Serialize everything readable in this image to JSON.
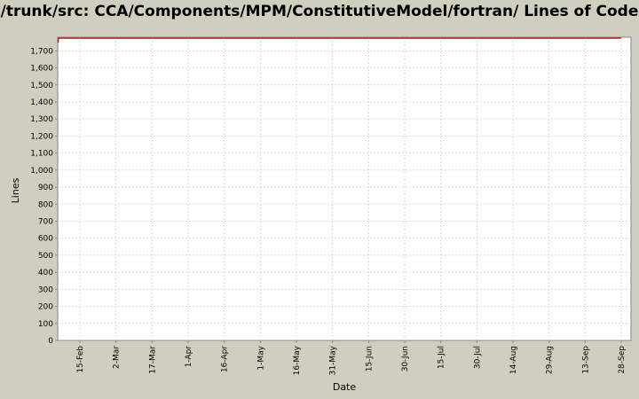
{
  "chart_data": {
    "type": "line",
    "title": "/trunk/src: CCA/Components/MPM/ConstitutiveModel/fortran/ Lines of Code",
    "xlabel": "Date",
    "ylabel": "Lines",
    "ylim": [
      0,
      1780
    ],
    "y_ticks": [
      "0",
      "100",
      "200",
      "300",
      "400",
      "500",
      "600",
      "700",
      "800",
      "900",
      "1,000",
      "1,100",
      "1,200",
      "1,300",
      "1,400",
      "1,500",
      "1,600",
      "1,700"
    ],
    "x_ticks": [
      "15-Feb",
      "2-Mar",
      "17-Mar",
      "1-Apr",
      "16-Apr",
      "1-May",
      "16-May",
      "31-May",
      "15-Jun",
      "30-Jun",
      "15-Jul",
      "30-Jul",
      "14-Aug",
      "29-Aug",
      "13-Sep",
      "28-Sep"
    ],
    "grid": true,
    "series": [
      {
        "color": "#b22222",
        "x": [
          "6-Feb",
          "28-Sep"
        ],
        "values": [
          1775,
          1775
        ]
      }
    ]
  }
}
